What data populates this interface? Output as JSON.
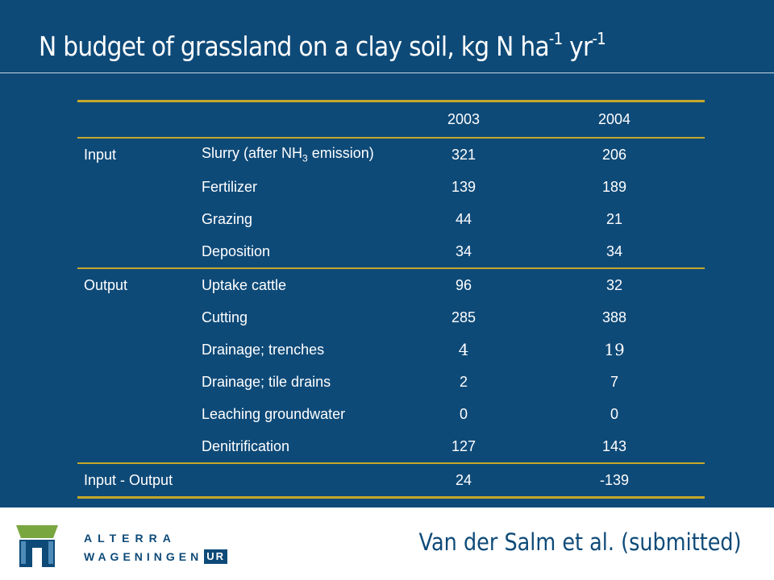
{
  "slide": {
    "title": "N budget of grassland on a clay soil, kg N ha",
    "title_unit_exp1": "-1",
    "title_unit_mid": " yr",
    "title_unit_exp2": "-1"
  },
  "table": {
    "years": [
      "2003",
      "2004"
    ],
    "input_label": "Input",
    "output_label": "Output",
    "slurry_label_pre": "Slurry (after NH",
    "slurry_label_sub": "3",
    "slurry_label_post": " emission)",
    "rows": [
      {
        "group": "Input",
        "item": "Slurry (after NH3 emission)",
        "v2003": "321",
        "v2004": "206"
      },
      {
        "group": "",
        "item": "Fertilizer",
        "v2003": "139",
        "v2004": "189"
      },
      {
        "group": "",
        "item": "Grazing",
        "v2003": "44",
        "v2004": "21"
      },
      {
        "group": "",
        "item": "Deposition",
        "v2003": "34",
        "v2004": "34"
      },
      {
        "group": "Output",
        "item": "Uptake cattle",
        "v2003": "96",
        "v2004": "32"
      },
      {
        "group": "",
        "item": "Cutting",
        "v2003": "285",
        "v2004": "388"
      },
      {
        "group": "",
        "item": "Drainage; trenches",
        "v2003": "4",
        "v2004": "19"
      },
      {
        "group": "",
        "item": "Drainage; tile drains",
        "v2003": "2",
        "v2004": "7"
      },
      {
        "group": "",
        "item": "Leaching groundwater",
        "v2003": "0",
        "v2004": "0"
      },
      {
        "group": "",
        "item": "Denitrification",
        "v2003": "127",
        "v2004": "143"
      }
    ],
    "balance": {
      "label": "Input - Output",
      "v2003": "24",
      "v2004": "-139"
    }
  },
  "footer": {
    "logo_icon": "alterra-gate-logo-icon",
    "brand_top": "ALTERRA",
    "brand_bottom": "WAGENINGEN",
    "brand_ur": "UR",
    "citation": "Van der Salm et al. (submitted)",
    "colors": {
      "navy": "#0e4a78",
      "gold": "#c6a728",
      "green": "#7aa640"
    }
  }
}
